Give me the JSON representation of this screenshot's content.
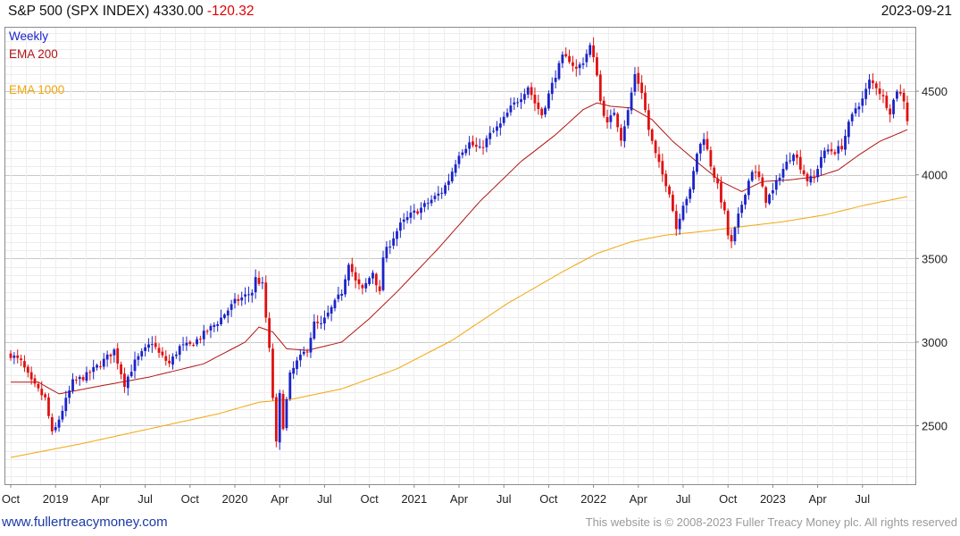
{
  "header": {
    "title": "S&P 500 (SPX INDEX) 4330.00",
    "change": "-120.32",
    "date": "2023-09-21"
  },
  "footer": {
    "url": "www.fullertreacymoney.com",
    "copyright": "This website is © 2008-2023 Fuller Treacy Money plc. All rights reserved"
  },
  "colors": {
    "up": "#1b24c8",
    "down": "#e01010",
    "ema200": "#b01515",
    "ema1000": "#f2a60c",
    "weekly": "#1b24c8"
  },
  "chart_data": {
    "type": "candlestick",
    "title": "S&P 500 (SPX INDEX) 4330.00 -120.32",
    "frequency_label": "Weekly",
    "legend": [
      {
        "name": "Weekly",
        "color": "#1b24c8"
      },
      {
        "name": "EMA 200",
        "color": "#b01515"
      },
      {
        "name": "EMA 1000",
        "color": "#f2a60c"
      }
    ],
    "ylim": [
      2150,
      4880
    ],
    "y_ticks": [
      2500,
      3000,
      3500,
      4000,
      4500
    ],
    "x_range_weeks": [
      0,
      260
    ],
    "x_ticks": [
      {
        "label": "Oct",
        "week": 0
      },
      {
        "label": "2019",
        "week": 13
      },
      {
        "label": "Apr",
        "week": 26
      },
      {
        "label": "Jul",
        "week": 39
      },
      {
        "label": "Oct",
        "week": 52
      },
      {
        "label": "2020",
        "week": 65
      },
      {
        "label": "Apr",
        "week": 78
      },
      {
        "label": "Jul",
        "week": 91
      },
      {
        "label": "Oct",
        "week": 104
      },
      {
        "label": "2021",
        "week": 117
      },
      {
        "label": "Apr",
        "week": 130
      },
      {
        "label": "Jul",
        "week": 143
      },
      {
        "label": "Oct",
        "week": 156
      },
      {
        "label": "2022",
        "week": 169
      },
      {
        "label": "Apr",
        "week": 182
      },
      {
        "label": "Jul",
        "week": 195
      },
      {
        "label": "Oct",
        "week": 208
      },
      {
        "label": "2023",
        "week": 221
      },
      {
        "label": "Apr",
        "week": 234
      },
      {
        "label": "Jul",
        "week": 247
      }
    ],
    "close_anchors": [
      [
        0,
        2925
      ],
      [
        3,
        2880
      ],
      [
        6,
        2760
      ],
      [
        10,
        2660
      ],
      [
        12,
        2450
      ],
      [
        13,
        2485
      ],
      [
        18,
        2760
      ],
      [
        22,
        2800
      ],
      [
        26,
        2870
      ],
      [
        30,
        2950
      ],
      [
        33,
        2750
      ],
      [
        36,
        2880
      ],
      [
        38,
        2930
      ],
      [
        41,
        3000
      ],
      [
        43,
        2930
      ],
      [
        46,
        2870
      ],
      [
        49,
        2970
      ],
      [
        52,
        2980
      ],
      [
        55,
        3030
      ],
      [
        60,
        3120
      ],
      [
        65,
        3240
      ],
      [
        70,
        3300
      ],
      [
        71,
        3380
      ],
      [
        73,
        3340
      ],
      [
        75,
        2950
      ],
      [
        77,
        2390
      ],
      [
        78,
        2680
      ],
      [
        79,
        2500
      ],
      [
        81,
        2800
      ],
      [
        83,
        2880
      ],
      [
        86,
        2960
      ],
      [
        88,
        3110
      ],
      [
        90,
        3100
      ],
      [
        93,
        3200
      ],
      [
        96,
        3300
      ],
      [
        98,
        3480
      ],
      [
        100,
        3360
      ],
      [
        102,
        3310
      ],
      [
        105,
        3420
      ],
      [
        107,
        3290
      ],
      [
        108,
        3510
      ],
      [
        111,
        3630
      ],
      [
        113,
        3700
      ],
      [
        116,
        3760
      ],
      [
        119,
        3800
      ],
      [
        122,
        3850
      ],
      [
        125,
        3900
      ],
      [
        127,
        3970
      ],
      [
        130,
        4130
      ],
      [
        133,
        4190
      ],
      [
        136,
        4150
      ],
      [
        139,
        4240
      ],
      [
        142,
        4300
      ],
      [
        145,
        4400
      ],
      [
        148,
        4470
      ],
      [
        150,
        4530
      ],
      [
        152,
        4430
      ],
      [
        154,
        4360
      ],
      [
        156,
        4480
      ],
      [
        158,
        4600
      ],
      [
        160,
        4700
      ],
      [
        162,
        4690
      ],
      [
        164,
        4630
      ],
      [
        166,
        4680
      ],
      [
        168,
        4770
      ],
      [
        170,
        4610
      ],
      [
        171,
        4440
      ],
      [
        173,
        4300
      ],
      [
        175,
        4380
      ],
      [
        177,
        4220
      ],
      [
        179,
        4380
      ],
      [
        181,
        4600
      ],
      [
        183,
        4500
      ],
      [
        185,
        4270
      ],
      [
        187,
        4120
      ],
      [
        189,
        4000
      ],
      [
        191,
        3900
      ],
      [
        193,
        3680
      ],
      [
        195,
        3830
      ],
      [
        197,
        3900
      ],
      [
        199,
        4130
      ],
      [
        201,
        4230
      ],
      [
        203,
        4060
      ],
      [
        205,
        3930
      ],
      [
        207,
        3770
      ],
      [
        208,
        3640
      ],
      [
        209,
        3590
      ],
      [
        211,
        3750
      ],
      [
        213,
        3900
      ],
      [
        215,
        4030
      ],
      [
        217,
        3980
      ],
      [
        219,
        3850
      ],
      [
        221,
        3900
      ],
      [
        223,
        4000
      ],
      [
        225,
        4070
      ],
      [
        227,
        4140
      ],
      [
        229,
        4050
      ],
      [
        231,
        3970
      ],
      [
        233,
        3980
      ],
      [
        235,
        4110
      ],
      [
        237,
        4150
      ],
      [
        239,
        4140
      ],
      [
        241,
        4170
      ],
      [
        243,
        4300
      ],
      [
        245,
        4400
      ],
      [
        247,
        4450
      ],
      [
        249,
        4560
      ],
      [
        251,
        4530
      ],
      [
        253,
        4460
      ],
      [
        255,
        4380
      ],
      [
        257,
        4510
      ],
      [
        259,
        4450
      ],
      [
        260,
        4330
      ]
    ],
    "ema200_anchors": [
      [
        0,
        2760
      ],
      [
        8,
        2760
      ],
      [
        14,
        2690
      ],
      [
        24,
        2730
      ],
      [
        40,
        2790
      ],
      [
        56,
        2870
      ],
      [
        68,
        3000
      ],
      [
        72,
        3090
      ],
      [
        76,
        3060
      ],
      [
        80,
        2960
      ],
      [
        86,
        2950
      ],
      [
        96,
        3000
      ],
      [
        104,
        3140
      ],
      [
        112,
        3300
      ],
      [
        124,
        3560
      ],
      [
        136,
        3840
      ],
      [
        148,
        4080
      ],
      [
        158,
        4240
      ],
      [
        166,
        4390
      ],
      [
        170,
        4430
      ],
      [
        174,
        4410
      ],
      [
        180,
        4400
      ],
      [
        186,
        4330
      ],
      [
        192,
        4200
      ],
      [
        200,
        4060
      ],
      [
        206,
        3960
      ],
      [
        212,
        3900
      ],
      [
        218,
        3960
      ],
      [
        226,
        3970
      ],
      [
        234,
        3990
      ],
      [
        240,
        4030
      ],
      [
        246,
        4120
      ],
      [
        252,
        4200
      ],
      [
        260,
        4270
      ]
    ],
    "ema1000_anchors": [
      [
        0,
        2310
      ],
      [
        20,
        2390
      ],
      [
        40,
        2480
      ],
      [
        60,
        2570
      ],
      [
        72,
        2640
      ],
      [
        82,
        2660
      ],
      [
        96,
        2720
      ],
      [
        112,
        2840
      ],
      [
        128,
        3010
      ],
      [
        144,
        3230
      ],
      [
        160,
        3420
      ],
      [
        170,
        3530
      ],
      [
        180,
        3600
      ],
      [
        190,
        3640
      ],
      [
        200,
        3660
      ],
      [
        212,
        3690
      ],
      [
        224,
        3720
      ],
      [
        236,
        3760
      ],
      [
        248,
        3820
      ],
      [
        260,
        3870
      ]
    ]
  }
}
